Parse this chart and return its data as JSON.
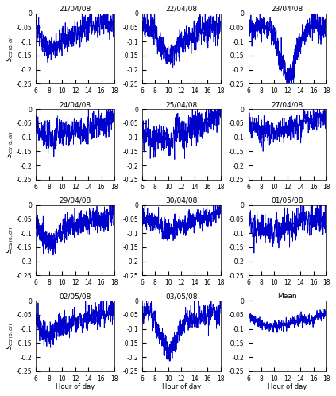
{
  "titles": [
    "21/04/08",
    "22/04/08",
    "23/04/08",
    "24/04/08",
    "25/04/08",
    "27/04/08",
    "29/04/08",
    "30/04/08",
    "01/05/08",
    "02/05/08",
    "03/05/08",
    "Mean"
  ],
  "ylabel": "S_{C5H8,OH}",
  "xlabel": "Hour of day",
  "xlim": [
    6,
    18
  ],
  "ylim": [
    -0.25,
    0
  ],
  "yticks": [
    0,
    -0.05,
    -0.1,
    -0.15,
    -0.2,
    -0.25
  ],
  "ytick_labels": [
    "0",
    "-0.05",
    "-0.1",
    "-0.15",
    "-0.2",
    "-0.25"
  ],
  "xticks": [
    6,
    8,
    10,
    12,
    14,
    16,
    18
  ],
  "line_color": "#0000cc",
  "figsize": [
    4.23,
    4.98
  ],
  "dpi": 100,
  "nrows": 4,
  "ncols": 3,
  "patterns": [
    {
      "envelope": [
        -0.04,
        -0.13,
        -0.1,
        -0.07,
        -0.05,
        -0.04,
        -0.03
      ],
      "noise": 0.022,
      "seed": 101
    },
    {
      "envelope": [
        -0.05,
        -0.07,
        -0.14,
        -0.1,
        -0.07,
        -0.06,
        -0.05
      ],
      "noise": 0.025,
      "seed": 202
    },
    {
      "envelope": [
        -0.04,
        -0.06,
        -0.08,
        -0.22,
        -0.1,
        -0.05,
        -0.04
      ],
      "noise": 0.025,
      "seed": 303
    },
    {
      "envelope": [
        -0.06,
        -0.1,
        -0.09,
        -0.08,
        -0.07,
        -0.05,
        -0.02
      ],
      "noise": 0.025,
      "seed": 404
    },
    {
      "envelope": [
        -0.06,
        -0.12,
        -0.11,
        -0.09,
        -0.06,
        -0.04,
        -0.02
      ],
      "noise": 0.028,
      "seed": 505
    },
    {
      "envelope": [
        -0.04,
        -0.08,
        -0.08,
        -0.07,
        -0.05,
        -0.04,
        -0.02
      ],
      "noise": 0.02,
      "seed": 606
    },
    {
      "envelope": [
        -0.05,
        -0.13,
        -0.1,
        -0.07,
        -0.06,
        -0.05,
        -0.03
      ],
      "noise": 0.022,
      "seed": 707
    },
    {
      "envelope": [
        -0.04,
        -0.07,
        -0.09,
        -0.08,
        -0.06,
        -0.04,
        -0.02
      ],
      "noise": 0.02,
      "seed": 808
    },
    {
      "envelope": [
        -0.05,
        -0.09,
        -0.09,
        -0.08,
        -0.07,
        -0.06,
        -0.04
      ],
      "noise": 0.025,
      "seed": 909
    },
    {
      "envelope": [
        -0.04,
        -0.12,
        -0.09,
        -0.08,
        -0.06,
        -0.05,
        -0.02
      ],
      "noise": 0.022,
      "seed": 1010
    },
    {
      "envelope": [
        -0.05,
        -0.08,
        -0.18,
        -0.1,
        -0.07,
        -0.05,
        -0.03
      ],
      "noise": 0.022,
      "seed": 1111
    },
    {
      "envelope": [
        -0.05,
        -0.08,
        -0.09,
        -0.08,
        -0.07,
        -0.06,
        -0.04
      ],
      "noise": 0.01,
      "seed": 1212
    }
  ]
}
